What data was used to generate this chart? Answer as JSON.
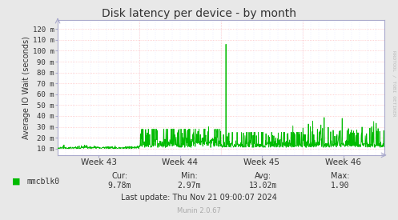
{
  "title": "Disk latency per device - by month",
  "ylabel": "Average IO Wait (seconds)",
  "ytick_labels": [
    "10 m",
    "20 m",
    "30 m",
    "40 m",
    "50 m",
    "60 m",
    "70 m",
    "80 m",
    "90 m",
    "100 m",
    "110 m",
    "120 m"
  ],
  "ytick_values": [
    0.01,
    0.02,
    0.03,
    0.04,
    0.05,
    0.06,
    0.07,
    0.08,
    0.09,
    0.1,
    0.11,
    0.12
  ],
  "ymin": 0.004,
  "ymax": 0.1285,
  "xtick_positions": [
    0.5,
    1.5,
    2.5,
    3.5
  ],
  "xtick_labels": [
    "Week 43",
    "Week 44",
    "Week 45",
    "Week 46"
  ],
  "line_color": "#00bb00",
  "bg_color": "#e8e8e8",
  "plot_bg_color": "#ffffff",
  "grid_color_red": "#ffaaaa",
  "grid_color_blue": "#ccccff",
  "legend_label": "mmcblk0",
  "legend_color": "#00bb00",
  "cur_label": "Cur:",
  "cur_val": "9.78m",
  "min_label": "Min:",
  "min_val": "2.97m",
  "avg_label": "Avg:",
  "avg_val": "13.02m",
  "max_label": "Max:",
  "max_val": "1.90",
  "last_update": "Last update: Thu Nov 21 09:00:07 2024",
  "munin_version": "Munin 2.0.67",
  "watermark": "RRDTOOL / TOBI OETIKER",
  "spine_color": "#aaaacc",
  "text_color": "#333333",
  "label_color": "#999999"
}
